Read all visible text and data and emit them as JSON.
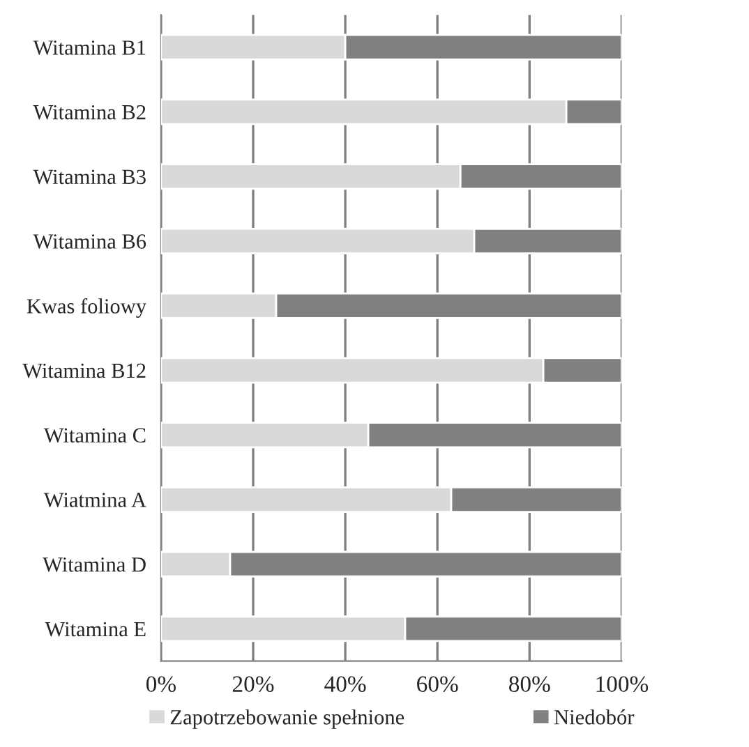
{
  "chart_data": {
    "type": "bar",
    "orientation": "horizontal",
    "stacked": true,
    "categories": [
      "Witamina B1",
      "Witamina B2",
      "Witamina B3",
      "Witamina B6",
      "Kwas foliowy",
      "Witamina B12",
      "Witamina C",
      "Wiatmina A",
      "Witamina D",
      "Witamina E"
    ],
    "series": [
      {
        "name": "Zapotrzebowanie spełnione",
        "color": "#d9d9d9",
        "values": [
          40,
          88,
          65,
          68,
          25,
          83,
          45,
          63,
          15,
          53
        ]
      },
      {
        "name": "Niedobór",
        "color": "#808080",
        "values": [
          60,
          12,
          35,
          32,
          75,
          17,
          55,
          37,
          85,
          47
        ]
      }
    ],
    "xlim": [
      0,
      100
    ],
    "xticks": [
      {
        "value": 0,
        "label": "0%"
      },
      {
        "value": 20,
        "label": "20%"
      },
      {
        "value": 40,
        "label": "40%"
      },
      {
        "value": 60,
        "label": "60%"
      },
      {
        "value": 80,
        "label": "80%"
      },
      {
        "value": 100,
        "label": "100%"
      }
    ],
    "grid": "x",
    "legend": "bottom"
  }
}
